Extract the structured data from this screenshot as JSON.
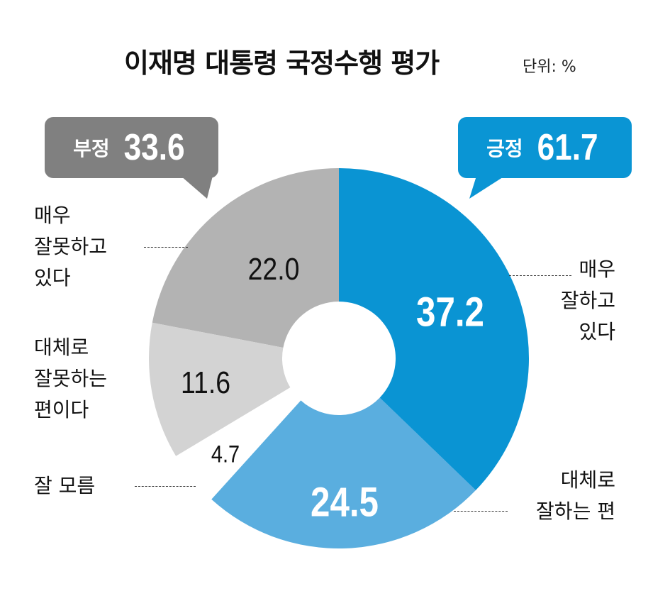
{
  "chart_data": {
    "type": "pie",
    "variant": "donut",
    "title": "이재명 대통령 국정수행 평가",
    "unit": "단위: %",
    "start": "top",
    "direction": "clockwise",
    "slices": [
      {
        "label": "매우 잘하고 있다",
        "lines": [
          "매우",
          "잘하고",
          "있다"
        ],
        "value": 37.2,
        "color": "#0a94d3"
      },
      {
        "label": "대체로 잘하는 편",
        "lines": [
          "대체로",
          "잘하는 편"
        ],
        "value": 24.5,
        "color": "#5aaedf"
      },
      {
        "label": "잘 모름",
        "lines": [
          "잘 모름"
        ],
        "value": 4.7,
        "color": "#ffffff"
      },
      {
        "label": "대체로 잘못하는 편이다",
        "lines": [
          "대체로",
          "잘못하는",
          "편이다"
        ],
        "value": 11.6,
        "color": "#d3d3d3"
      },
      {
        "label": "매우 잘못하고 있다",
        "lines": [
          "매우",
          "잘못하고",
          "있다"
        ],
        "value": 22.0,
        "color": "#b3b3b3"
      }
    ],
    "groups": [
      {
        "label": "긍정",
        "value": 61.7,
        "color": "#0a95d4"
      },
      {
        "label": "부정",
        "value": 33.6,
        "color": "#808080"
      }
    ]
  }
}
